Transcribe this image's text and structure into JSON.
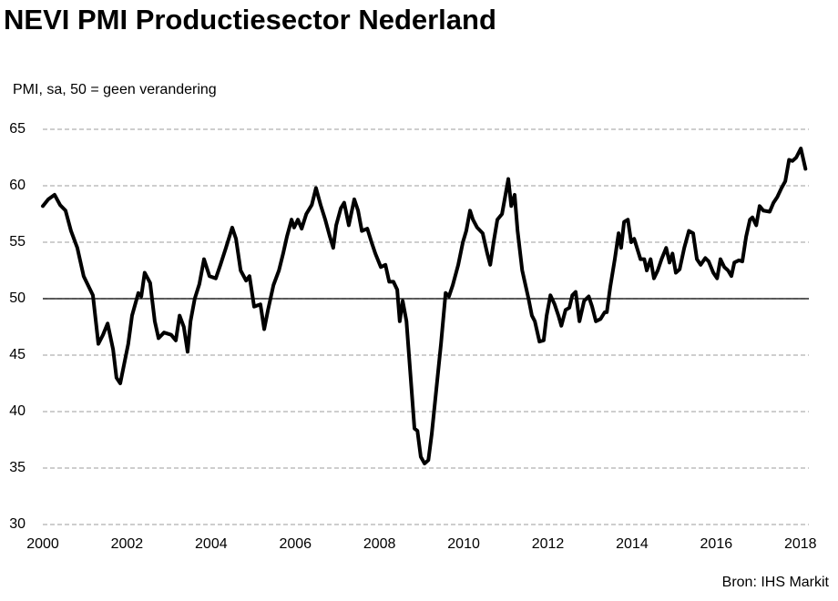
{
  "chart_data": {
    "type": "line",
    "title": "NEVI PMI Productiesector Nederland",
    "subtitle": "PMI, sa, 50 = geen verandering",
    "source": "Bron: IHS Markit",
    "color": "#000000",
    "reference_line": 50,
    "grid": true,
    "xlim": [
      2000,
      2018.2
    ],
    "xticks": [
      2000,
      2002,
      2004,
      2006,
      2008,
      2010,
      2012,
      2014,
      2016,
      2018
    ],
    "ylim": [
      30,
      65
    ],
    "yticks": [
      30,
      35,
      40,
      45,
      50,
      55,
      60,
      65
    ],
    "x": [
      2000.0,
      2000.13,
      2000.28,
      2000.41,
      2000.54,
      2000.67,
      2000.82,
      2000.97,
      2001.19,
      2001.32,
      2001.43,
      2001.54,
      2001.67,
      2001.75,
      2001.84,
      2002.03,
      2002.12,
      2002.27,
      2002.34,
      2002.42,
      2002.55,
      2002.66,
      2002.75,
      2002.88,
      2003.05,
      2003.16,
      2003.25,
      2003.35,
      2003.44,
      2003.51,
      2003.61,
      2003.72,
      2003.83,
      2003.96,
      2004.11,
      2004.22,
      2004.35,
      2004.5,
      2004.59,
      2004.7,
      2004.83,
      2004.91,
      2005.02,
      2005.17,
      2005.26,
      2005.35,
      2005.48,
      2005.61,
      2005.71,
      2005.8,
      2005.91,
      2005.97,
      2006.06,
      2006.15,
      2006.26,
      2006.39,
      2006.49,
      2006.6,
      2006.71,
      2006.82,
      2006.9,
      2006.97,
      2007.08,
      2007.16,
      2007.27,
      2007.4,
      2007.49,
      2007.58,
      2007.71,
      2007.81,
      2007.9,
      2008.03,
      2008.14,
      2008.23,
      2008.33,
      2008.42,
      2008.48,
      2008.55,
      2008.64,
      2008.74,
      2008.83,
      2008.9,
      2008.98,
      2009.07,
      2009.16,
      2009.24,
      2009.35,
      2009.46,
      2009.57,
      2009.65,
      2009.74,
      2009.87,
      2009.98,
      2010.06,
      2010.15,
      2010.22,
      2010.32,
      2010.45,
      2010.56,
      2010.63,
      2010.71,
      2010.8,
      2010.91,
      2011.06,
      2011.13,
      2011.21,
      2011.28,
      2011.39,
      2011.45,
      2011.54,
      2011.62,
      2011.69,
      2011.8,
      2011.9,
      2011.97,
      2012.06,
      2012.16,
      2012.25,
      2012.32,
      2012.42,
      2012.51,
      2012.58,
      2012.66,
      2012.75,
      2012.86,
      2012.97,
      2013.05,
      2013.14,
      2013.25,
      2013.35,
      2013.4,
      2013.48,
      2013.59,
      2013.68,
      2013.74,
      2013.81,
      2013.9,
      2013.98,
      2014.05,
      2014.2,
      2014.29,
      2014.35,
      2014.44,
      2014.52,
      2014.61,
      2014.7,
      2014.81,
      2014.89,
      2014.96,
      2015.04,
      2015.13,
      2015.24,
      2015.35,
      2015.45,
      2015.54,
      2015.63,
      2015.74,
      2015.82,
      2015.93,
      2016.02,
      2016.1,
      2016.19,
      2016.28,
      2016.36,
      2016.43,
      2016.54,
      2016.62,
      2016.71,
      2016.8,
      2016.86,
      2016.95,
      2017.03,
      2017.12,
      2017.27,
      2017.36,
      2017.45,
      2017.55,
      2017.64,
      2017.73,
      2017.81,
      2017.9,
      2018.01,
      2018.12
    ],
    "values": [
      58.2,
      58.8,
      59.2,
      58.3,
      57.8,
      56.0,
      54.5,
      52.0,
      50.3,
      46.0,
      46.8,
      47.8,
      45.5,
      43.0,
      42.5,
      46.0,
      48.5,
      50.5,
      50.2,
      52.3,
      51.4,
      48.0,
      46.5,
      47.0,
      46.8,
      46.3,
      48.5,
      47.5,
      45.3,
      48.0,
      50.0,
      51.3,
      53.5,
      52.0,
      51.8,
      53.0,
      54.5,
      56.3,
      55.3,
      52.5,
      51.6,
      52.0,
      49.3,
      49.5,
      47.3,
      49.0,
      51.2,
      52.5,
      54.0,
      55.5,
      57.0,
      56.3,
      57.0,
      56.2,
      57.5,
      58.3,
      59.8,
      58.3,
      57.0,
      55.5,
      54.5,
      56.5,
      58.0,
      58.5,
      56.5,
      58.8,
      57.8,
      56.0,
      56.2,
      55.0,
      54.0,
      52.8,
      53.0,
      51.5,
      51.5,
      50.8,
      48.0,
      49.8,
      48.0,
      43.0,
      38.5,
      38.3,
      36.0,
      35.4,
      35.7,
      38.0,
      42.0,
      46.0,
      50.5,
      50.2,
      51.2,
      53.0,
      55.0,
      56.0,
      57.8,
      57.0,
      56.3,
      55.8,
      54.0,
      53.0,
      55.0,
      57.0,
      57.5,
      60.6,
      58.2,
      59.2,
      56.0,
      52.5,
      51.5,
      50.0,
      48.5,
      48.0,
      46.2,
      46.3,
      48.5,
      50.3,
      49.5,
      48.5,
      47.6,
      49.0,
      49.2,
      50.3,
      50.6,
      48.0,
      49.8,
      50.2,
      49.3,
      48.0,
      48.2,
      48.8,
      48.8,
      51.0,
      53.5,
      55.8,
      54.5,
      56.8,
      57.0,
      55.0,
      55.3,
      53.5,
      53.5,
      52.5,
      53.5,
      51.8,
      52.5,
      53.5,
      54.5,
      53.2,
      54.0,
      52.3,
      52.6,
      54.5,
      56.0,
      55.8,
      53.5,
      53.0,
      53.6,
      53.3,
      52.3,
      51.8,
      53.5,
      52.8,
      52.5,
      52.0,
      53.2,
      53.4,
      53.3,
      55.5,
      57.0,
      57.2,
      56.5,
      58.2,
      57.8,
      57.7,
      58.5,
      59.0,
      59.8,
      60.4,
      62.3,
      62.2,
      62.5,
      63.3,
      61.5
    ]
  }
}
